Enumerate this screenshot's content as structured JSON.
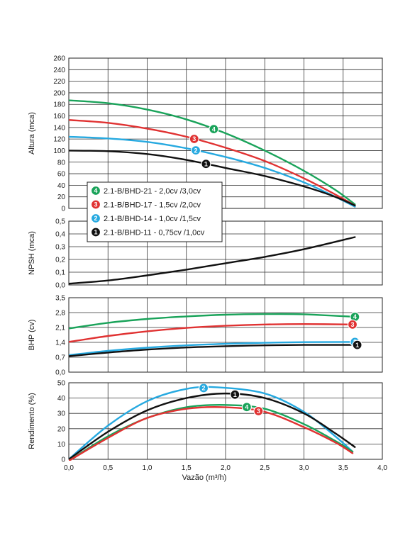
{
  "chart_data": {
    "type": "line",
    "xlabel": "Vazão (m³/h)",
    "xlim": [
      0,
      4
    ],
    "xticks": [
      "0,0",
      "0,5",
      "1,0",
      "1,5",
      "2,0",
      "2,5",
      "3,0",
      "3,5",
      "4,0"
    ],
    "legend": {
      "placement": "inside-top-panel-lower-left",
      "entries": [
        {
          "badge": "4",
          "label": "2.1-B/BHD-21 - 2,0cv /3,0cv",
          "color": "#1aa35a"
        },
        {
          "badge": "3",
          "label": "2.1-B/BHD-17 - 1,5cv /2,0cv",
          "color": "#e03232"
        },
        {
          "badge": "2",
          "label": "2.1-B/BHD-14 - 1,0cv /1,5cv",
          "color": "#26a9e0"
        },
        {
          "badge": "1",
          "label": "2.1-B/BHD-11 - 0,75cv /1,0cv",
          "color": "#111111"
        }
      ]
    },
    "panels": [
      {
        "id": "altura",
        "ylabel": "Altura (mca)",
        "ylim": [
          0,
          260
        ],
        "yticks": [
          "0",
          "20",
          "40",
          "60",
          "80",
          "100",
          "120",
          "140",
          "160",
          "180",
          "200",
          "220",
          "240",
          "260"
        ],
        "series": [
          {
            "badge": "4",
            "color": "#1aa35a",
            "label_at": 1.85,
            "x": [
              0,
              0.5,
              1,
              1.5,
              2,
              2.5,
              3,
              3.4,
              3.65
            ],
            "y": [
              187,
              182,
              171,
              154,
              130,
              100,
              65,
              32,
              7
            ]
          },
          {
            "badge": "3",
            "color": "#e03232",
            "label_at": 1.6,
            "x": [
              0,
              0.5,
              1,
              1.5,
              2,
              2.5,
              3,
              3.4,
              3.65
            ],
            "y": [
              153,
              148,
              138,
              124,
              105,
              82,
              52,
              24,
              5
            ]
          },
          {
            "badge": "2",
            "color": "#26a9e0",
            "label_at": 1.62,
            "x": [
              0,
              0.5,
              1,
              1.5,
              2,
              2.5,
              3,
              3.4,
              3.65
            ],
            "y": [
              124,
              121,
              115,
              104,
              89,
              70,
              45,
              20,
              3
            ]
          },
          {
            "badge": "1",
            "color": "#111111",
            "label_at": 1.75,
            "x": [
              0,
              0.5,
              1,
              1.5,
              2,
              2.5,
              3,
              3.4,
              3.65
            ],
            "y": [
              100,
              99,
              94,
              84,
              70,
              56,
              38,
              20,
              5
            ]
          }
        ]
      },
      {
        "id": "npsh",
        "ylabel": "NPSH (mca)",
        "ylim": [
          0,
          0.5
        ],
        "yticks": [
          "0,0",
          "0,1",
          "0,2",
          "0,3",
          "0,4",
          "0,5"
        ],
        "series": [
          {
            "color": "#111111",
            "x": [
              0,
              0.5,
              1,
              1.5,
              2,
              2.5,
              3,
              3.65
            ],
            "y": [
              0.01,
              0.035,
              0.075,
              0.12,
              0.17,
              0.22,
              0.28,
              0.375
            ]
          }
        ]
      },
      {
        "id": "bhp",
        "ylabel": "BHP (cv)",
        "ylim": [
          0,
          3.5
        ],
        "yticks": [
          "0,0",
          "0,7",
          "1,4",
          "2,1",
          "2,8",
          "3,5"
        ],
        "series": [
          {
            "badge": "4",
            "color": "#1aa35a",
            "label_at": 3.65,
            "x": [
              0,
              0.5,
              1,
              1.5,
              2,
              2.5,
              3,
              3.65
            ],
            "y": [
              2.05,
              2.32,
              2.5,
              2.62,
              2.7,
              2.73,
              2.72,
              2.6
            ]
          },
          {
            "badge": "3",
            "color": "#e03232",
            "label_at": 3.62,
            "x": [
              0,
              0.5,
              1,
              1.5,
              2,
              2.5,
              3,
              3.62
            ],
            "y": [
              1.42,
              1.7,
              1.92,
              2.08,
              2.18,
              2.24,
              2.26,
              2.24
            ]
          },
          {
            "badge": "2",
            "color": "#26a9e0",
            "label_at": 3.65,
            "x": [
              0,
              0.5,
              1,
              1.5,
              2,
              2.5,
              3,
              3.65
            ],
            "y": [
              0.8,
              1.0,
              1.15,
              1.26,
              1.33,
              1.38,
              1.41,
              1.42
            ]
          },
          {
            "badge": "1",
            "color": "#111111",
            "label_at": 3.68,
            "x": [
              0,
              0.5,
              1,
              1.5,
              2,
              2.5,
              3,
              3.65
            ],
            "y": [
              0.75,
              0.92,
              1.06,
              1.16,
              1.22,
              1.26,
              1.28,
              1.28
            ]
          }
        ]
      },
      {
        "id": "rendimento",
        "ylabel": "Rendimento (%)",
        "ylim": [
          0,
          50
        ],
        "yticks": [
          "0",
          "10",
          "20",
          "30",
          "40",
          "50"
        ],
        "series": [
          {
            "badge": "2",
            "color": "#26a9e0",
            "label_at": 1.72,
            "x": [
              0,
              0.5,
              1,
              1.5,
              1.9,
              2.5,
              3,
              3.4,
              3.62
            ],
            "y": [
              0,
              22,
              38,
              46,
              47,
              43,
              31,
              15,
              5
            ]
          },
          {
            "badge": "1",
            "color": "#111111",
            "label_at": 2.12,
            "x": [
              0,
              0.5,
              1,
              1.5,
              2,
              2.5,
              3,
              3.4,
              3.65
            ],
            "y": [
              0,
              18,
              32,
              40,
              43,
              40,
              30,
              17,
              8
            ]
          },
          {
            "badge": "4",
            "color": "#1aa35a",
            "label_at": 2.27,
            "x": [
              0,
              0.5,
              1,
              1.5,
              2,
              2.5,
              3,
              3.4,
              3.62
            ],
            "y": [
              -1,
              15,
              27,
              34,
              35.5,
              33,
              23,
              12,
              5
            ]
          },
          {
            "badge": "3",
            "color": "#e03232",
            "label_at": 2.42,
            "x": [
              0,
              0.5,
              1,
              1.5,
              2,
              2.5,
              3,
              3.4,
              3.62
            ],
            "y": [
              -1,
              14,
              27,
              33,
              34,
              31,
              21,
              11,
              4
            ]
          }
        ]
      }
    ]
  }
}
